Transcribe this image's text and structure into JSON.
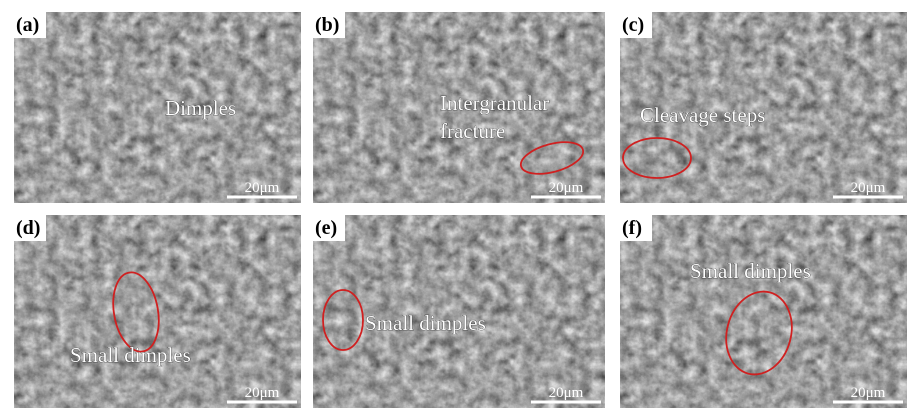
{
  "panels": [
    {
      "label": "(a)",
      "annotation": [
        "Dimples"
      ],
      "scale_bar": "20μm"
    },
    {
      "label": "(b)",
      "annotation": [
        "Intergranular",
        "fracture"
      ],
      "scale_bar": "20μm"
    },
    {
      "label": "(c)",
      "annotation": [
        "Cleavage steps"
      ],
      "scale_bar": "20μm"
    },
    {
      "label": "(d)",
      "annotation": [
        "Small dimples"
      ],
      "scale_bar": "20μm"
    },
    {
      "label": "(e)",
      "annotation": [
        "Small dimples"
      ],
      "scale_bar": "20μm"
    },
    {
      "label": "(f)",
      "annotation": [
        "Small dimples"
      ],
      "scale_bar": "20μm"
    }
  ]
}
